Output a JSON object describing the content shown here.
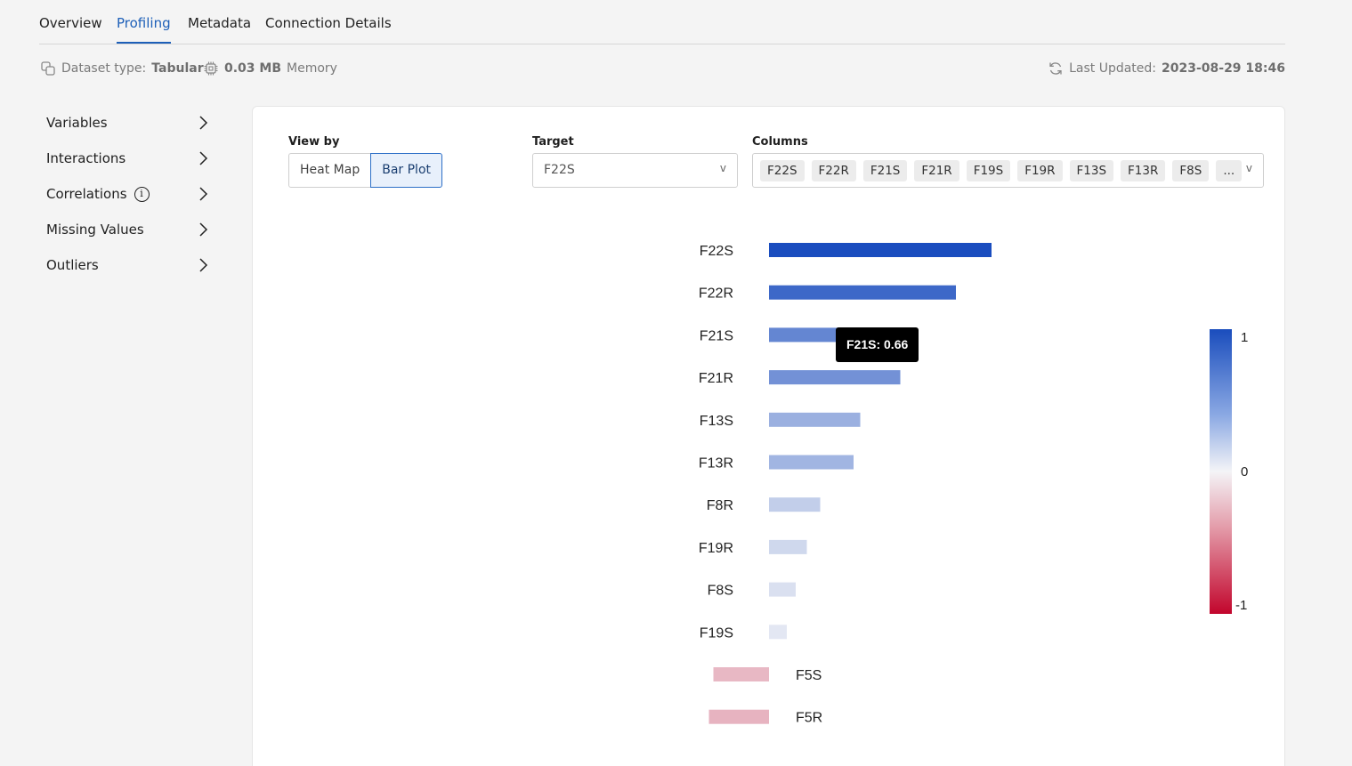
{
  "tabs": [
    {
      "label": "Overview"
    },
    {
      "label": "Profiling",
      "active": true
    },
    {
      "label": "Metadata"
    },
    {
      "label": "Connection Details"
    }
  ],
  "info": {
    "dataset_type_label": "Dataset type:",
    "dataset_type_value": "Tabular",
    "memory_value": "0.03 MB",
    "memory_label": "Memory",
    "updated_label": "Last Updated:",
    "updated_value": "2023-08-29 18:46"
  },
  "sidebar": {
    "items": [
      {
        "label": "Variables"
      },
      {
        "label": "Interactions"
      },
      {
        "label": "Correlations",
        "info_glyph": "i"
      },
      {
        "label": "Missing Values"
      },
      {
        "label": "Outliers"
      }
    ]
  },
  "controls": {
    "view_by_label": "View by",
    "view_options": [
      "Heat Map",
      "Bar Plot"
    ],
    "view_selected": "Bar Plot",
    "target_label": "Target",
    "target_value": "F22S",
    "columns_label": "Columns",
    "columns_chips": [
      "F22S",
      "F22R",
      "F21S",
      "F21R",
      "F19S",
      "F19R",
      "F13S",
      "F13R",
      "F8S",
      "..."
    ],
    "caret": "v"
  },
  "tooltip": {
    "text": "F21S: 0.66"
  },
  "legend": {
    "max_label": "1",
    "mid_label": "0",
    "min_label": "-1",
    "colors": {
      "positive": "#1a4dbd",
      "neutral": "#f4f4f7",
      "negative": "#c2052c"
    }
  },
  "chart_data": {
    "type": "bar",
    "orientation": "horizontal",
    "categories": [
      "F22S",
      "F22R",
      "F21S",
      "F21R",
      "F13S",
      "F13R",
      "F8R",
      "F19R",
      "F8S",
      "F19S",
      "F5S",
      "F5R"
    ],
    "values": [
      1.0,
      0.84,
      0.66,
      0.59,
      0.41,
      0.38,
      0.23,
      0.17,
      0.12,
      0.08,
      -0.25,
      -0.27
    ],
    "xlim": [
      -1,
      1
    ],
    "color_scale": "diverging blue-white-red"
  }
}
